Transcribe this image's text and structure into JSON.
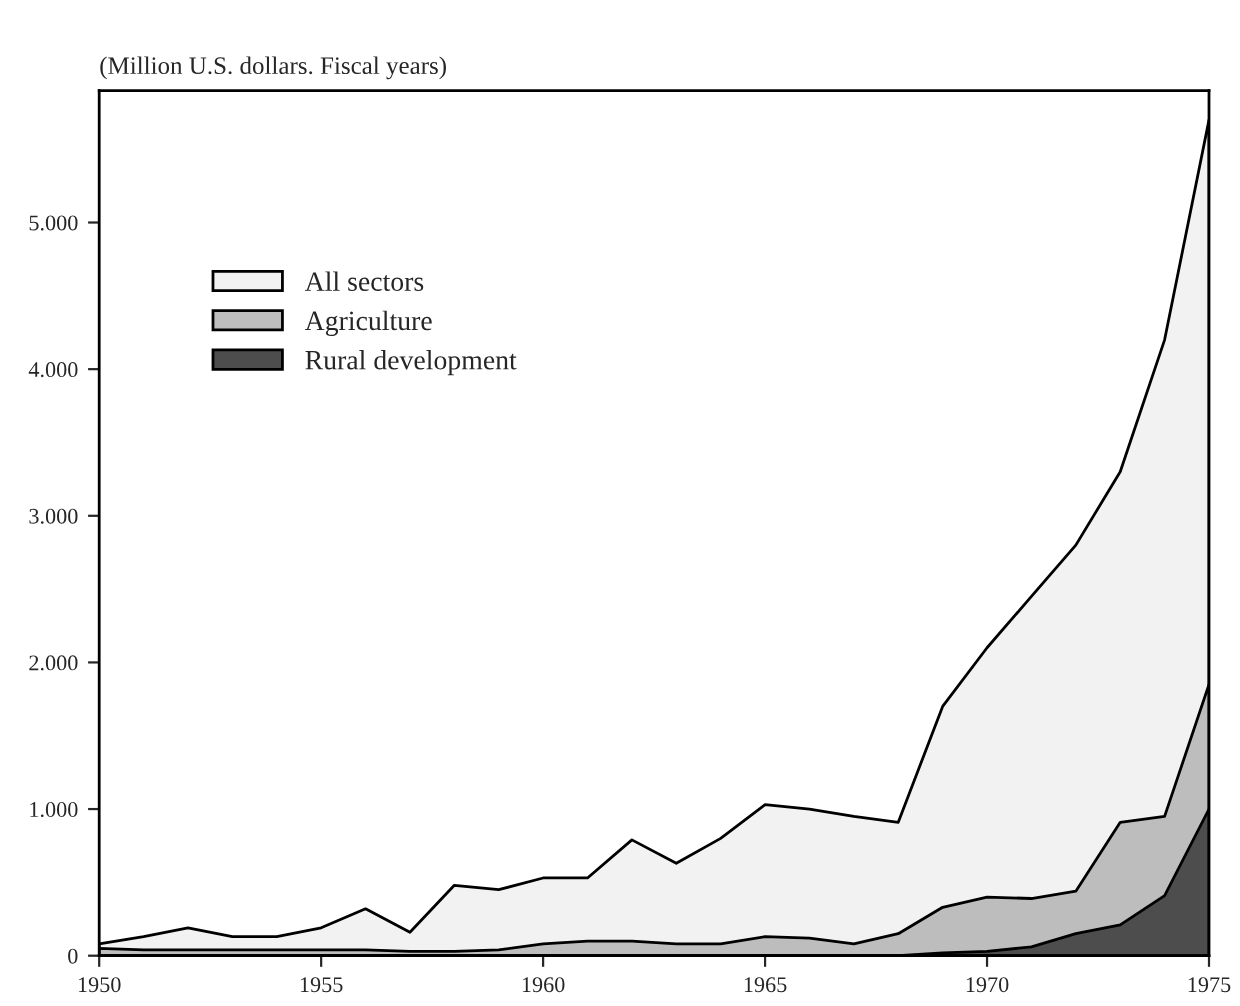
{
  "chart_data": {
    "type": "area",
    "title": "(Million U.S. dollars. Fiscal years)",
    "x": [
      1950,
      1951,
      1952,
      1953,
      1954,
      1955,
      1956,
      1957,
      1958,
      1959,
      1960,
      1961,
      1962,
      1963,
      1964,
      1965,
      1966,
      1967,
      1968,
      1969,
      1970,
      1971,
      1972,
      1973,
      1974,
      1975
    ],
    "series": [
      {
        "name": "All sectors",
        "color": "#f2f2f2",
        "values": [
          80,
          130,
          190,
          130,
          130,
          190,
          320,
          160,
          480,
          450,
          530,
          530,
          790,
          630,
          800,
          1030,
          1000,
          950,
          910,
          1700,
          2100,
          2450,
          2800,
          3300,
          4200,
          5700
        ]
      },
      {
        "name": "Agriculture",
        "color": "#bdbdbd",
        "values": [
          50,
          40,
          40,
          40,
          40,
          40,
          40,
          30,
          30,
          40,
          80,
          100,
          100,
          80,
          80,
          130,
          120,
          80,
          150,
          330,
          400,
          390,
          440,
          910,
          950,
          1850
        ]
      },
      {
        "name": "Rural development",
        "color": "#4d4d4d",
        "values": [
          0,
          0,
          0,
          0,
          0,
          0,
          0,
          0,
          0,
          0,
          0,
          0,
          0,
          0,
          0,
          0,
          0,
          0,
          0,
          20,
          30,
          60,
          150,
          210,
          410,
          1000
        ]
      }
    ],
    "xlim": [
      1950,
      1975
    ],
    "xticks": [
      1950,
      1955,
      1960,
      1965,
      1970,
      1975
    ],
    "ylim": [
      0,
      5900
    ],
    "yticks": [
      0,
      {
        "value": 1000,
        "label": "1.000"
      },
      {
        "value": 2000,
        "label": "2.000"
      },
      {
        "value": 3000,
        "label": "3.000"
      },
      {
        "value": 4000,
        "label": "4.000"
      },
      {
        "value": 5000,
        "label": "5.000"
      }
    ],
    "legend": "top left",
    "grid": false
  }
}
